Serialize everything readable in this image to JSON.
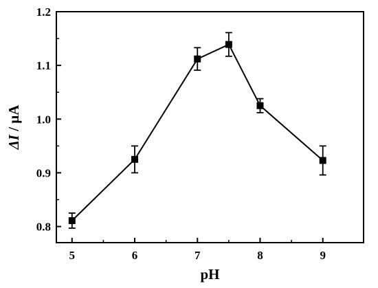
{
  "chart_data": {
    "type": "line",
    "xlabel": "pH",
    "ylabel": {
      "italic": "ΔI",
      "rest": " / μA"
    },
    "xlim": [
      4.75,
      9.65
    ],
    "ylim": [
      0.77,
      1.2
    ],
    "xticks": [
      5,
      6,
      7,
      8,
      9
    ],
    "yticks": [
      0.8,
      0.9,
      1.0,
      1.1,
      1.2
    ],
    "ytick_labels": [
      "0.8",
      "0.9",
      "1.0",
      "1.1",
      "1.2"
    ],
    "grid": false,
    "series": [
      {
        "marker": "square",
        "color": "#000000",
        "x": [
          5,
          6,
          7,
          7.5,
          8,
          9
        ],
        "y": [
          0.811,
          0.925,
          1.112,
          1.139,
          1.025,
          0.923
        ],
        "error": [
          0.014,
          0.025,
          0.021,
          0.022,
          0.013,
          0.027
        ]
      }
    ]
  }
}
